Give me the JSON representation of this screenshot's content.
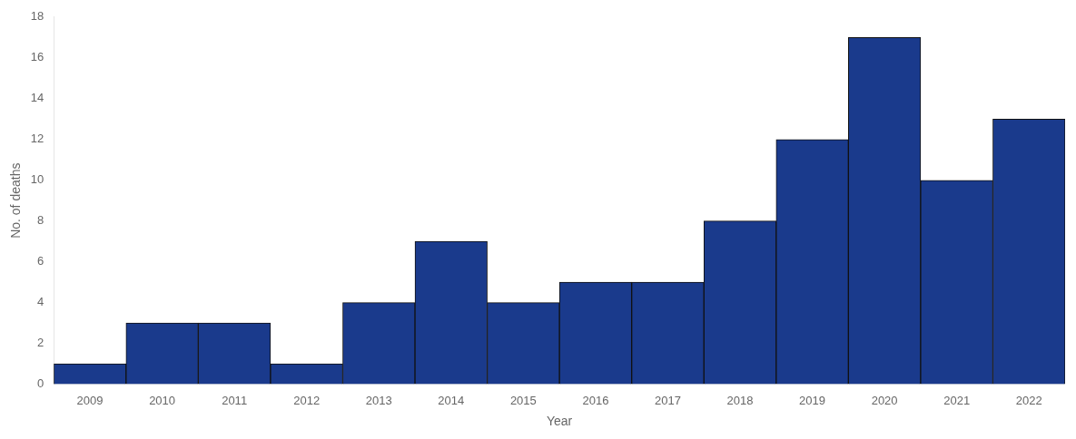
{
  "chart_data": {
    "type": "bar",
    "categories": [
      "2009",
      "2010",
      "2011",
      "2012",
      "2013",
      "2014",
      "2015",
      "2016",
      "2017",
      "2018",
      "2019",
      "2020",
      "2021",
      "2022"
    ],
    "values": [
      1,
      3,
      3,
      1,
      4,
      7,
      4,
      5,
      5,
      8,
      12,
      17,
      10,
      13
    ],
    "color": "#1a3a8c",
    "xlabel": "Year",
    "ylabel": "No. of deaths",
    "ylim": [
      0,
      18
    ],
    "yticks": [
      0,
      2,
      4,
      6,
      8,
      10,
      12,
      14,
      16,
      18
    ],
    "grid": false
  }
}
